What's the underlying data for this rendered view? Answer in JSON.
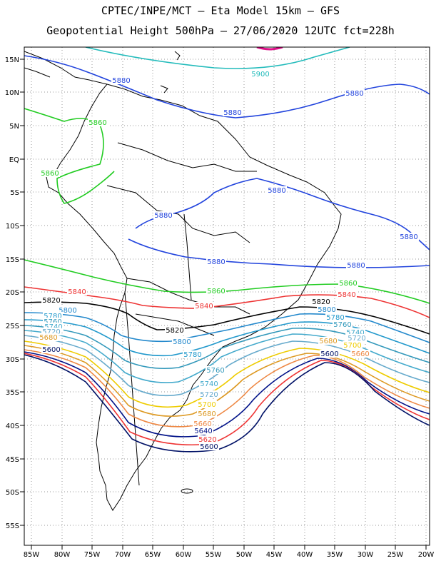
{
  "title_line1": "CPTEC/INPE/MCT –  Eta Model 15km – GFS",
  "title_line2": "Geopotential Height 500hPa – 27/06/2020 12UTC fct=228h",
  "lat_ticks": [
    "15N",
    "10N",
    "5N",
    "EQ",
    "5S",
    "10S",
    "15S",
    "20S",
    "25S",
    "30S",
    "35S",
    "40S",
    "45S",
    "50S",
    "55S"
  ],
  "lon_ticks": [
    "85W",
    "80W",
    "75W",
    "70W",
    "65W",
    "60W",
    "55W",
    "50W",
    "45W",
    "40W",
    "35W",
    "30W",
    "25W",
    "20W"
  ],
  "colors": {
    "5900": "#22bbbb",
    "5880": "#2244dd",
    "5860": "#22cc22",
    "5840": "#ee3333",
    "5820": "#000000",
    "5800": "#2288cc",
    "5780": "#2299cc",
    "5760": "#3399bb",
    "5740": "#44aacc",
    "5720": "#66aacc",
    "5700": "#eecc00",
    "5680": "#dd9922",
    "5660": "#ee8844",
    "5640": "#001188",
    "5620": "#ee3333",
    "5600": "#001166",
    "coast": "#000000",
    "magenta": "#dd1188"
  },
  "contour_labels": [
    {
      "text": "5900",
      "level": "5900"
    },
    {
      "text": "5880",
      "level": "5880"
    },
    {
      "text": "5880",
      "level": "5880"
    },
    {
      "text": "5880",
      "level": "5880"
    },
    {
      "text": "5880",
      "level": "5880"
    },
    {
      "text": "5880",
      "level": "5880"
    },
    {
      "text": "5880",
      "level": "5880"
    },
    {
      "text": "5880",
      "level": "5880"
    },
    {
      "text": "5880",
      "level": "5880"
    },
    {
      "text": "5860",
      "level": "5860"
    },
    {
      "text": "5860",
      "level": "5860"
    },
    {
      "text": "5860",
      "level": "5860"
    },
    {
      "text": "5860",
      "level": "5860"
    },
    {
      "text": "5840",
      "level": "5840"
    },
    {
      "text": "5840",
      "level": "5840"
    },
    {
      "text": "5840",
      "level": "5840"
    },
    {
      "text": "5820",
      "level": "5820"
    },
    {
      "text": "5820",
      "level": "5820"
    },
    {
      "text": "5820",
      "level": "5820"
    },
    {
      "text": "5800",
      "level": "5800"
    },
    {
      "text": "5800",
      "level": "5800"
    },
    {
      "text": "5800",
      "level": "5800"
    },
    {
      "text": "5780",
      "level": "5780"
    },
    {
      "text": "5780",
      "level": "5780"
    },
    {
      "text": "5780",
      "level": "5780"
    },
    {
      "text": "5760",
      "level": "5760"
    },
    {
      "text": "5760",
      "level": "5760"
    },
    {
      "text": "5760",
      "level": "5760"
    },
    {
      "text": "5740",
      "level": "5740"
    },
    {
      "text": "5740",
      "level": "5740"
    },
    {
      "text": "5740",
      "level": "5740"
    },
    {
      "text": "5720",
      "level": "5720"
    },
    {
      "text": "5720",
      "level": "5720"
    },
    {
      "text": "5720",
      "level": "5720"
    },
    {
      "text": "5700",
      "level": "5700"
    },
    {
      "text": "5700",
      "level": "5700"
    },
    {
      "text": "5680",
      "level": "5680"
    },
    {
      "text": "5680",
      "level": "5680"
    },
    {
      "text": "5680",
      "level": "5680"
    },
    {
      "text": "5660",
      "level": "5660"
    },
    {
      "text": "5660",
      "level": "5660"
    },
    {
      "text": "5640",
      "level": "5640"
    },
    {
      "text": "5620",
      "level": "5620"
    },
    {
      "text": "5600",
      "level": "5600"
    },
    {
      "text": "5600",
      "level": "5600"
    },
    {
      "text": "5600",
      "level": "5600"
    }
  ]
}
